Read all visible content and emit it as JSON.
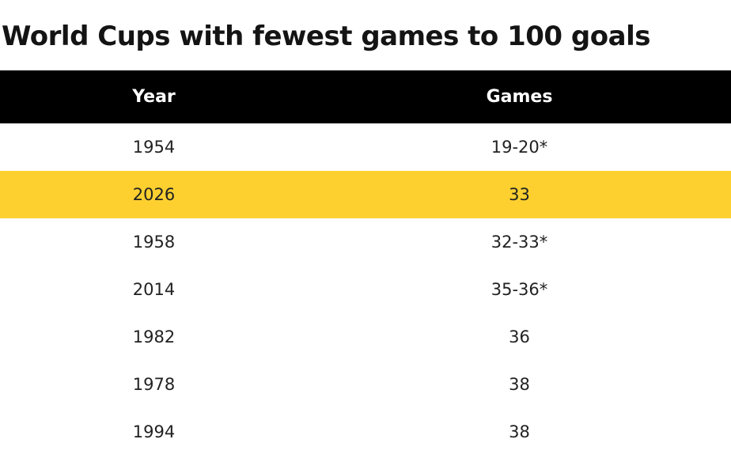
{
  "title": "World Cups with fewest games to 100 goals",
  "columns": {
    "year": "Year",
    "games": "Games"
  },
  "highlight_color": "#fdd030",
  "header_color": "#000000",
  "rows": [
    {
      "year": "1954",
      "games": "19-20*",
      "highlighted": false
    },
    {
      "year": "2026",
      "games": "33",
      "highlighted": true
    },
    {
      "year": "1958",
      "games": "32-33*",
      "highlighted": false
    },
    {
      "year": "2014",
      "games": "35-36*",
      "highlighted": false
    },
    {
      "year": "1982",
      "games": "36",
      "highlighted": false
    },
    {
      "year": "1978",
      "games": "38",
      "highlighted": false
    },
    {
      "year": "1994",
      "games": "38",
      "highlighted": false
    }
  ]
}
